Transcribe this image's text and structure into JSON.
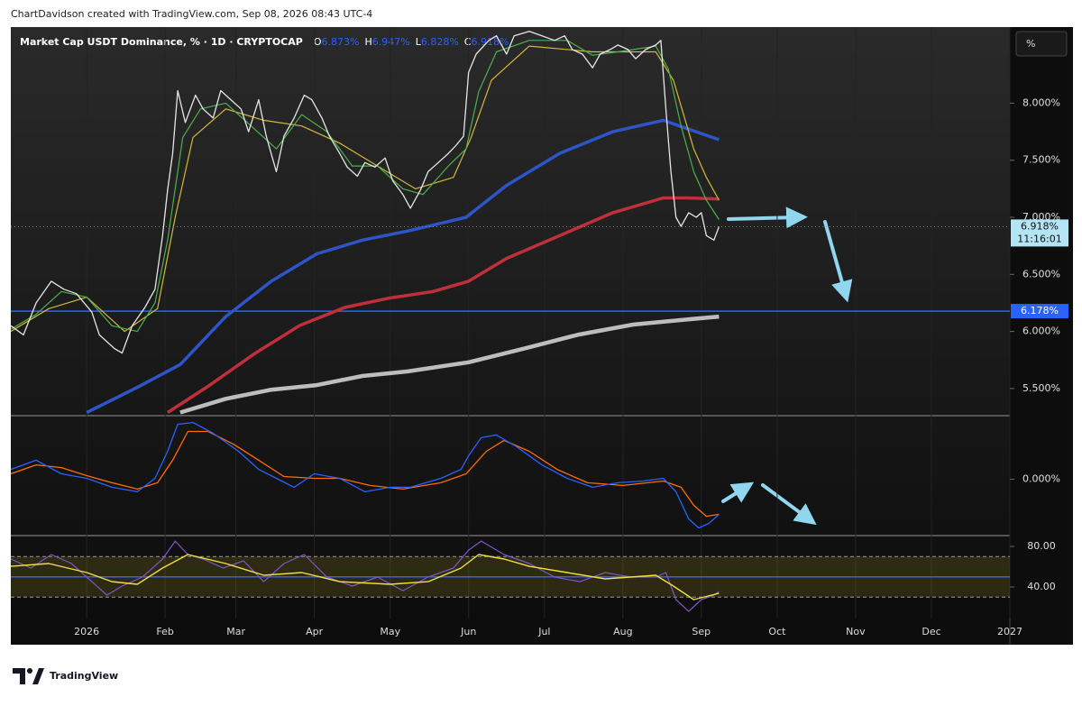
{
  "header": "ChartDavidson created with TradingView.com, Sep 08, 2026 08:43 UTC-4",
  "brand": "TradingView",
  "chart_data": [
    {
      "type": "line",
      "title": "Market Cap USDT Dominance, % · 1D · CRYPTOCAP",
      "unit_label": "%",
      "ohlc": {
        "names": [
          "O",
          "H",
          "L",
          "C"
        ],
        "values": [
          6.873,
          6.947,
          6.828,
          6.918
        ],
        "value_labels": [
          "6.873%",
          "6.947%",
          "6.828%",
          "6.918%"
        ],
        "color": "#2962ff"
      },
      "xlim": [
        -30,
        365
      ],
      "xticks": [
        {
          "value": 0,
          "label": "2026"
        },
        {
          "value": 31,
          "label": "Feb"
        },
        {
          "value": 59,
          "label": "Mar"
        },
        {
          "value": 90,
          "label": "Apr"
        },
        {
          "value": 120,
          "label": "May"
        },
        {
          "value": 151,
          "label": "Jun"
        },
        {
          "value": 181,
          "label": "Jul"
        },
        {
          "value": 212,
          "label": "Aug"
        },
        {
          "value": 243,
          "label": "Sep"
        },
        {
          "value": 273,
          "label": "Oct"
        },
        {
          "value": 304,
          "label": "Nov"
        },
        {
          "value": 334,
          "label": "Dec"
        },
        {
          "value": 365,
          "label": "2027"
        }
      ],
      "grid": true,
      "ylim": [
        5.27,
        8.667
      ],
      "yticks": [
        {
          "value": 5.5,
          "label": "5.500%"
        },
        {
          "value": 6,
          "label": "6.000%"
        },
        {
          "value": 6.5,
          "label": "6.500%"
        },
        {
          "value": 7,
          "label": "7.000%"
        },
        {
          "value": 7.5,
          "label": "7.500%"
        },
        {
          "value": 8,
          "label": "8.000%"
        }
      ],
      "last_price": {
        "value": 6.918,
        "label": "6.918%",
        "countdown": "11:16:01",
        "color": "#b3e5f5"
      },
      "hline": {
        "value": 6.178,
        "label": "6.178%",
        "color": "#2962ff"
      },
      "series": [
        {
          "color": "#2d55c8",
          "width": 3.5,
          "x": [
            0,
            20,
            37,
            55,
            73,
            91,
            109,
            127,
            150,
            166,
            187,
            208,
            228,
            237,
            250
          ],
          "values": [
            5.29,
            5.51,
            5.71,
            6.13,
            6.44,
            6.68,
            6.8,
            6.88,
            7.0,
            7.28,
            7.56,
            7.75,
            7.85,
            7.78,
            7.68
          ]
        },
        {
          "color": "#c0303a",
          "width": 3.5,
          "x": [
            32,
            48,
            66,
            84,
            102,
            119,
            137,
            151,
            166,
            187,
            208,
            228,
            237,
            250
          ],
          "values": [
            5.29,
            5.52,
            5.8,
            6.05,
            6.21,
            6.29,
            6.35,
            6.44,
            6.64,
            6.84,
            7.04,
            7.17,
            7.17,
            7.16
          ]
        },
        {
          "color": "#bdbdbd",
          "width": 4.5,
          "x": [
            37,
            55,
            73,
            91,
            109,
            127,
            151,
            173,
            194,
            216,
            230,
            250
          ],
          "values": [
            5.29,
            5.41,
            5.49,
            5.53,
            5.61,
            5.65,
            5.73,
            5.85,
            5.97,
            6.06,
            6.09,
            6.13
          ]
        },
        {
          "color": "#d4b83a",
          "width": 1.2,
          "x": [
            -30,
            -15,
            0,
            15,
            28,
            35,
            42,
            55,
            70,
            85,
            100,
            115,
            130,
            145,
            152,
            160,
            175,
            200,
            225,
            232,
            240,
            245,
            250
          ],
          "values": [
            6.0,
            6.2,
            6.3,
            6.0,
            6.2,
            7.0,
            7.7,
            7.95,
            7.85,
            7.8,
            7.65,
            7.45,
            7.25,
            7.35,
            7.7,
            8.2,
            8.5,
            8.45,
            8.45,
            8.2,
            7.6,
            7.35,
            7.15
          ]
        },
        {
          "color": "#4caf50",
          "width": 1.2,
          "x": [
            -30,
            -20,
            -10,
            0,
            10,
            20,
            27,
            32,
            38,
            45,
            55,
            65,
            75,
            85,
            95,
            105,
            115,
            125,
            133,
            143,
            150,
            155,
            162,
            175,
            190,
            200,
            210,
            225,
            230,
            235,
            240,
            245,
            250
          ],
          "values": [
            6.02,
            6.15,
            6.35,
            6.3,
            6.05,
            6.0,
            6.25,
            6.8,
            7.7,
            7.95,
            8.0,
            7.8,
            7.6,
            7.9,
            7.75,
            7.45,
            7.45,
            7.25,
            7.2,
            7.45,
            7.6,
            8.1,
            8.45,
            8.55,
            8.55,
            8.42,
            8.45,
            8.5,
            8.3,
            7.8,
            7.4,
            7.15,
            6.98
          ]
        },
        {
          "color": "#e6e6e6",
          "width": 1.3,
          "x": [
            -30,
            -25,
            -20,
            -14,
            -9,
            -4,
            2,
            5,
            11,
            14,
            18,
            23,
            27,
            30,
            32,
            34,
            36,
            39,
            43,
            46,
            50,
            53,
            57,
            61,
            64,
            68,
            71,
            75,
            78,
            82,
            86,
            89,
            93,
            96,
            100,
            103,
            107,
            110,
            114,
            118,
            121,
            125,
            128,
            132,
            135,
            139,
            143,
            146,
            149,
            151,
            154,
            159,
            162,
            166,
            169,
            175,
            180,
            185,
            189,
            192,
            196,
            200,
            203,
            207,
            210,
            214,
            217,
            221,
            225,
            227,
            229,
            231,
            233,
            235,
            238,
            241,
            243,
            245,
            248,
            250
          ],
          "values": [
            6.05,
            5.97,
            6.25,
            6.44,
            6.37,
            6.33,
            6.17,
            5.97,
            5.85,
            5.81,
            6.05,
            6.21,
            6.37,
            6.84,
            7.24,
            7.56,
            8.11,
            7.83,
            8.07,
            7.95,
            7.87,
            8.11,
            8.03,
            7.95,
            7.75,
            8.03,
            7.71,
            7.4,
            7.71,
            7.87,
            8.07,
            8.03,
            7.87,
            7.71,
            7.56,
            7.44,
            7.36,
            7.48,
            7.44,
            7.52,
            7.32,
            7.2,
            7.08,
            7.24,
            7.4,
            7.48,
            7.56,
            7.63,
            7.71,
            8.27,
            8.43,
            8.55,
            8.59,
            8.43,
            8.59,
            8.63,
            8.59,
            8.55,
            8.59,
            8.47,
            8.43,
            8.31,
            8.43,
            8.47,
            8.51,
            8.47,
            8.39,
            8.47,
            8.51,
            8.55,
            7.95,
            7.4,
            7.0,
            6.92,
            7.04,
            7.0,
            7.04,
            6.84,
            6.8,
            6.918
          ]
        }
      ]
    },
    {
      "type": "line",
      "ylim": [
        -0.31,
        0.35
      ],
      "yticks": [
        {
          "value": 0,
          "label": "0.000%"
        }
      ],
      "series": [
        {
          "color": "#ff6d00",
          "width": 1.3,
          "x": [
            -30,
            -20,
            -10,
            0,
            10,
            20,
            28,
            34,
            40,
            48,
            58,
            68,
            78,
            90,
            100,
            112,
            125,
            140,
            150,
            158,
            165,
            175,
            186,
            198,
            212,
            228,
            235,
            240,
            245,
            250
          ],
          "values": [
            0.03,
            0.08,
            0.065,
            0.02,
            -0.02,
            -0.055,
            -0.02,
            0.106,
            0.267,
            0.267,
            0.196,
            0.106,
            0.015,
            0.005,
            0.005,
            -0.035,
            -0.055,
            -0.02,
            0.03,
            0.156,
            0.217,
            0.156,
            0.055,
            -0.02,
            -0.035,
            -0.01,
            -0.045,
            -0.146,
            -0.207,
            -0.196
          ]
        },
        {
          "color": "#2962ff",
          "width": 1.3,
          "x": [
            -30,
            -20,
            -10,
            0,
            10,
            20,
            27,
            32,
            36,
            42,
            50,
            60,
            68,
            75,
            82,
            90,
            100,
            110,
            120,
            128,
            140,
            148,
            151,
            156,
            162,
            170,
            180,
            190,
            200,
            210,
            220,
            228,
            233,
            238,
            242,
            246,
            250
          ],
          "values": [
            0.055,
            0.106,
            0.03,
            0.005,
            -0.045,
            -0.07,
            0.005,
            0.156,
            0.307,
            0.317,
            0.257,
            0.156,
            0.055,
            0.005,
            -0.045,
            0.03,
            0.005,
            -0.07,
            -0.045,
            -0.045,
            0.005,
            0.055,
            0.131,
            0.232,
            0.247,
            0.181,
            0.08,
            0.005,
            -0.045,
            -0.02,
            -0.01,
            0.005,
            -0.07,
            -0.222,
            -0.272,
            -0.247,
            -0.196
          ]
        }
      ]
    },
    {
      "type": "line",
      "ylim": [
        8.9,
        89.8
      ],
      "yticks": [
        {
          "value": 40,
          "label": "40.00"
        },
        {
          "value": 80,
          "label": "80.00"
        }
      ],
      "band": [
        30,
        70
      ],
      "band_color": "#8a7a1e",
      "hline": {
        "value": 50,
        "color": "#2962ff"
      },
      "series": [
        {
          "color": "#7e57c2",
          "width": 1.2,
          "x": [
            -30,
            -22,
            -14,
            -6,
            2,
            8,
            14,
            22,
            30,
            35,
            40,
            46,
            54,
            62,
            70,
            78,
            86,
            95,
            105,
            115,
            125,
            135,
            145,
            151,
            156,
            165,
            175,
            185,
            195,
            205,
            215,
            225,
            229,
            233,
            238,
            243,
            248,
            250
          ],
          "values": [
            67.6,
            58.7,
            72,
            63.1,
            45.3,
            32,
            40.9,
            49.8,
            67.6,
            85.3,
            72,
            67.6,
            58.7,
            65.8,
            45.3,
            63.1,
            72,
            49.8,
            40.9,
            49.8,
            36.4,
            49.8,
            58.7,
            76.4,
            85.3,
            72,
            63.1,
            49.8,
            45.3,
            54.2,
            49.8,
            49.8,
            54.2,
            27.6,
            16,
            27.6,
            32,
            35.6
          ]
        },
        {
          "color": "#f0e040",
          "width": 1.4,
          "x": [
            -30,
            -15,
            0,
            10,
            20,
            30,
            40,
            55,
            70,
            85,
            100,
            120,
            135,
            148,
            155,
            165,
            175,
            190,
            205,
            225,
            232,
            240,
            250
          ],
          "values": [
            60.4,
            63.1,
            54.2,
            45.3,
            42.7,
            58.7,
            72,
            63.1,
            51.6,
            54.2,
            45.3,
            42.7,
            45.3,
            58.7,
            72,
            67.6,
            60.4,
            54.2,
            48,
            51.6,
            40.9,
            27.6,
            33.8
          ]
        }
      ]
    }
  ]
}
